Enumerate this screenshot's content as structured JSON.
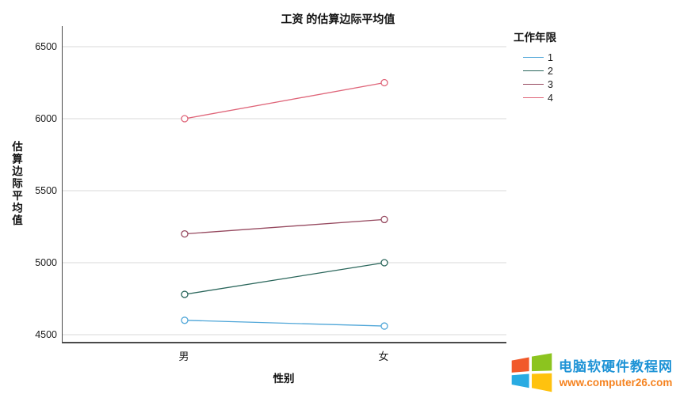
{
  "title": "工资 的估算边际平均值",
  "y_axis": {
    "label": "估算边际平均值",
    "ticks": [
      4500,
      5000,
      5500,
      6000,
      6500
    ]
  },
  "x_axis": {
    "label": "性别",
    "categories": [
      "男",
      "女"
    ]
  },
  "legend": {
    "title": "工作年限",
    "items": [
      {
        "label": "1",
        "color": "#4FA6D8"
      },
      {
        "label": "2",
        "color": "#2A665B"
      },
      {
        "label": "3",
        "color": "#96495F"
      },
      {
        "label": "4",
        "color": "#DF6579"
      }
    ]
  },
  "chart_data": {
    "type": "line",
    "categories": [
      "男",
      "女"
    ],
    "series": [
      {
        "name": "1",
        "color": "#4FA6D8",
        "values": [
          4600,
          4560
        ]
      },
      {
        "name": "2",
        "color": "#2A665B",
        "values": [
          4780,
          5000
        ]
      },
      {
        "name": "3",
        "color": "#96495F",
        "values": [
          5200,
          5300
        ]
      },
      {
        "name": "4",
        "color": "#DF6579",
        "values": [
          6000,
          6250
        ]
      }
    ],
    "title": "工资 的估算边际平均值",
    "xlabel": "性别",
    "ylabel": "估算边际平均值",
    "ylim": [
      4400,
      6650
    ],
    "yticks": [
      4500,
      5000,
      5500,
      6000,
      6500
    ],
    "grid": true,
    "gridline_color": "#D9D9D9",
    "legend_title": "工作年限",
    "legend_position": "right",
    "marker": "open-circle"
  },
  "watermark": {
    "site_name": "电脑软硬件教程网",
    "url": "www.computer26.com",
    "name_color": "#1E93D6",
    "url_color": "#F5821F",
    "logo_colors": {
      "top_left": "#F1592A",
      "top_right": "#8CC41F",
      "bottom_left": "#29ABE2",
      "bottom_right": "#FFC20E"
    }
  }
}
